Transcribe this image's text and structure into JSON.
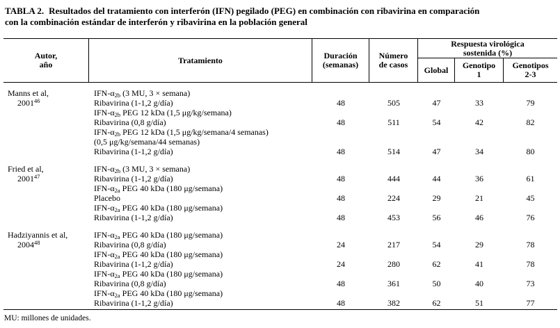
{
  "title": {
    "label": "TABLA 2.",
    "line1": "Resultados del tratamiento con interferón (IFN) pegilado (PEG) en combinación con ribavirina en comparación",
    "line2": "con la combinación estándar de interferón y ribavirina en la población general"
  },
  "table": {
    "headers": {
      "author_line1": "Autor,",
      "author_line2": "año",
      "treatment": "Tratamiento",
      "duration_line1": "Duración",
      "duration_line2": "(semanas)",
      "cases_line1": "Número",
      "cases_line2": "de casos",
      "svr_line1": "Respuesta virológica",
      "svr_line2": "sostenida (%)",
      "global": "Global",
      "genotype1_line1": "Genotipo",
      "genotype1_line2": "1",
      "genotype23_line1": "Genotipos",
      "genotype23_line2": "2-3"
    },
    "value_columns": [
      "duration_weeks",
      "num_cases",
      "svr_global_pct",
      "svr_genotype1_pct",
      "svr_genotype23_pct"
    ],
    "studies": [
      {
        "author": "Manns et al,",
        "year": "2001",
        "ref": "46",
        "rows": [
          {
            "treatment": "IFN-α~2b~ (3 MU, 3 × semana)",
            "values": null
          },
          {
            "treatment": "Ribavirina (1-1,2 g/día)",
            "values": [
              48,
              505,
              47,
              33,
              79
            ]
          },
          {
            "treatment": "IFN-α~2b~ PEG 12 kDa (1,5 μg/kg/semana)",
            "values": null
          },
          {
            "treatment": "Ribavirina (0,8 g/día)",
            "values": [
              48,
              511,
              54,
              42,
              82
            ]
          },
          {
            "treatment": "IFN-α~2b~ PEG 12 kDa (1,5 μg/kg/semana/4 semanas)",
            "values": null
          },
          {
            "treatment": "(0,5 μg/kg/semana/44 semanas)",
            "values": null
          },
          {
            "treatment": "Ribavirina (1-1,2 g/día)",
            "values": [
              48,
              514,
              47,
              34,
              80
            ]
          }
        ]
      },
      {
        "author": "Fried et al,",
        "year": "2001",
        "ref": "47",
        "rows": [
          {
            "treatment": "IFN-α~2b~ (3 MU, 3 × semana)",
            "values": null
          },
          {
            "treatment": "Ribavirina (1-1,2 g/día)",
            "values": [
              48,
              444,
              44,
              36,
              61
            ]
          },
          {
            "treatment": "IFN-α~2a~ PEG 40 kDa (180 μg/semana)",
            "values": null
          },
          {
            "treatment": "Placebo",
            "values": [
              48,
              224,
              29,
              21,
              45
            ]
          },
          {
            "treatment": "IFN-α~2a~ PEG 40 kDa (180 μg/semana)",
            "values": null
          },
          {
            "treatment": "Ribavirina (1-1,2 g/día)",
            "values": [
              48,
              453,
              56,
              46,
              76
            ]
          }
        ]
      },
      {
        "author": "Hadziyannis et al,",
        "year": "2004",
        "ref": "48",
        "rows": [
          {
            "treatment": "IFN-α~2a~ PEG 40 kDa (180 μg/semana)",
            "values": null
          },
          {
            "treatment": "Ribavirina (0,8 g/día)",
            "values": [
              24,
              217,
              54,
              29,
              78
            ]
          },
          {
            "treatment": "IFN-α~2a~ PEG 40 kDa (180 μg/semana)",
            "values": null
          },
          {
            "treatment": "Ribavirina (1-1,2 g/día)",
            "values": [
              24,
              280,
              62,
              41,
              78
            ]
          },
          {
            "treatment": "IFN-α~2a~ PEG 40 kDa (180 μg/semana)",
            "values": null
          },
          {
            "treatment": "Ribavirina (0,8 g/día)",
            "values": [
              48,
              361,
              50,
              40,
              73
            ]
          },
          {
            "treatment": "IFN-α~2a~ PEG 40 kDa (180 μg/semana)",
            "values": null
          },
          {
            "treatment": "Ribavirina (1-1,2 g/día)",
            "values": [
              48,
              382,
              62,
              51,
              77
            ]
          }
        ]
      }
    ]
  },
  "footnote": "MU: millones de unidades.",
  "colors": {
    "text": "#000000",
    "background": "#ffffff",
    "rule": "#000000"
  }
}
